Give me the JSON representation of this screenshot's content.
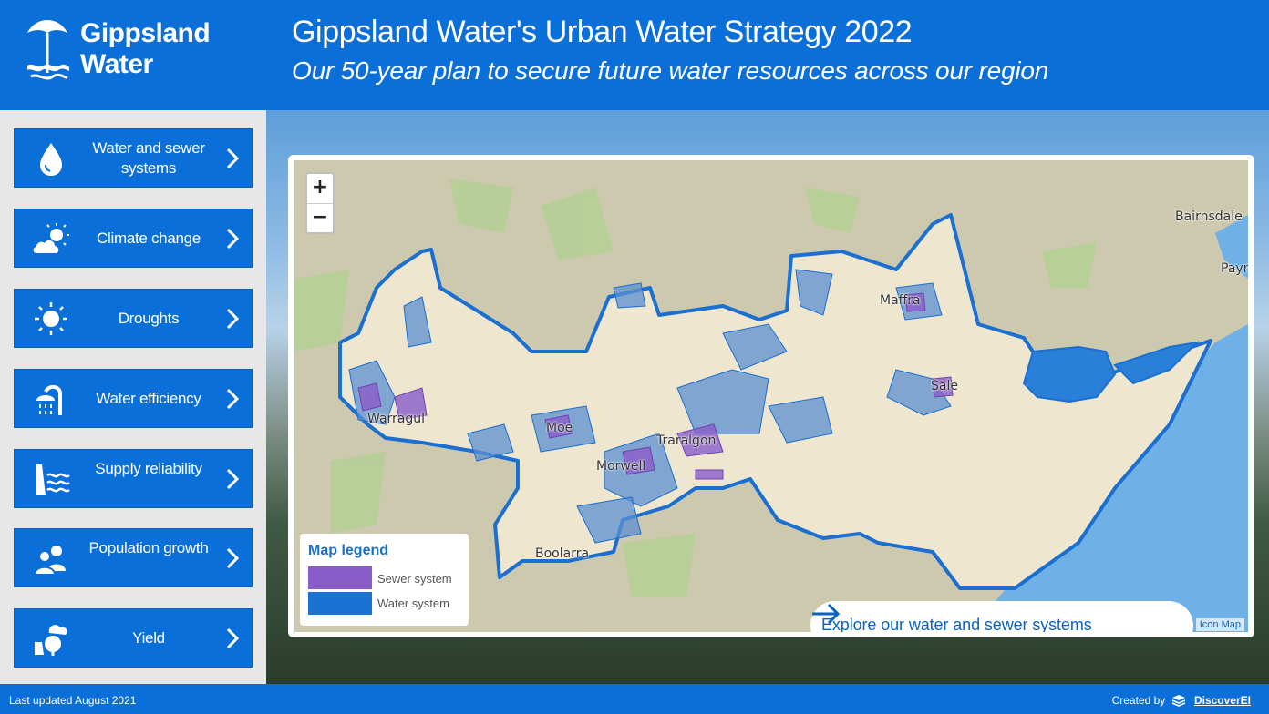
{
  "header": {
    "logo_text": "Gippsland\nWater",
    "title": "Gippsland Water's Urban Water Strategy 2022",
    "subtitle": "Our 50-year plan to secure future water resources across our region"
  },
  "sidebar": {
    "items": [
      {
        "label": "Water and sewer systems",
        "icon": "water-drop-icon"
      },
      {
        "label": "Climate change",
        "icon": "sun-cloud-icon"
      },
      {
        "label": "Droughts",
        "icon": "sun-icon"
      },
      {
        "label": "Water efficiency",
        "icon": "shower-icon"
      },
      {
        "label": "Supply reliability",
        "icon": "dam-waves-icon"
      },
      {
        "label": "Population growth",
        "icon": "people-icon"
      },
      {
        "label": "Yield",
        "icon": "cloud-tree-icon"
      }
    ]
  },
  "map": {
    "zoom_in": "+",
    "zoom_out": "−",
    "places": [
      "Warragul",
      "Moe",
      "Morwell",
      "Traralgon",
      "Boolarra",
      "Maffra",
      "Sale",
      "Bairnsdale",
      "Payn"
    ],
    "legend": {
      "title": "Map legend",
      "items": [
        {
          "label": "Sewer system",
          "color": "#8a5cc9"
        },
        {
          "label": "Water system",
          "color": "#1a72d2"
        }
      ]
    },
    "explore_label": "Explore our water and sewer systems",
    "attribution": "Icon Map"
  },
  "footer": {
    "last_updated": "Last updated August 2021",
    "created_by": "Created by",
    "brand": "DiscoverEI"
  },
  "colors": {
    "brand_blue": "#0a6fd8",
    "boundary": "#1a6fd0",
    "region_fill": "#efe6cf",
    "sea": "#6fb0e6"
  }
}
